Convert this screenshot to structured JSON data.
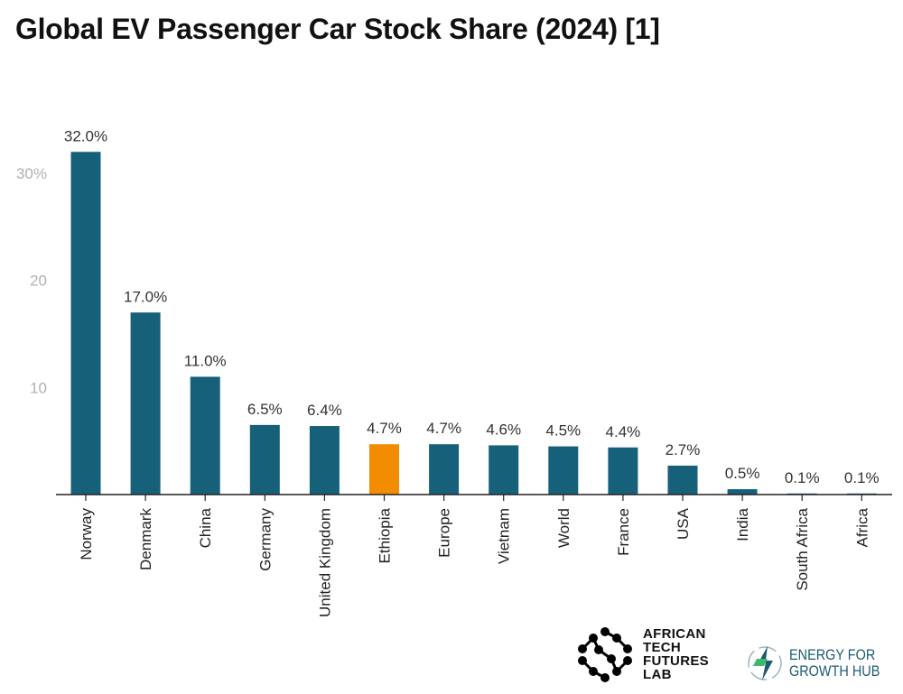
{
  "chart_data": {
    "type": "bar",
    "title": "Global EV Passenger Car Stock Share (2024) [1]",
    "xlabel": "",
    "ylabel": "",
    "categories": [
      "Norway",
      "Denmark",
      "China",
      "Germany",
      "United Kingdom",
      "Ethiopia",
      "Europe",
      "Vietnam",
      "World",
      "France",
      "USA",
      "India",
      "South Africa",
      "Africa"
    ],
    "values": [
      32.0,
      17.0,
      11.0,
      6.5,
      6.4,
      4.7,
      4.7,
      4.6,
      4.5,
      4.4,
      2.7,
      0.5,
      0.1,
      0.1
    ],
    "data_labels": [
      "32.0%",
      "17.0%",
      "11.0%",
      "6.5%",
      "6.4%",
      "4.7%",
      "4.7%",
      "4.6%",
      "4.5%",
      "4.4%",
      "2.7%",
      "0.5%",
      "0.1%",
      "0.1%"
    ],
    "highlight": "Ethiopia",
    "yticks": [
      10,
      20,
      30
    ],
    "ytick_labels": [
      "10",
      "20",
      "30%"
    ],
    "ylim": [
      0,
      34
    ],
    "grid": false,
    "colors": {
      "default": "#17607a",
      "highlight": "#f28c00"
    }
  },
  "logos": {
    "atfl": {
      "lines": [
        "AFRICAN",
        "TECH",
        "FUTURES",
        "LAB"
      ]
    },
    "efgh": {
      "lines": [
        "ENERGY FOR",
        "GROWTH HUB"
      ]
    }
  }
}
